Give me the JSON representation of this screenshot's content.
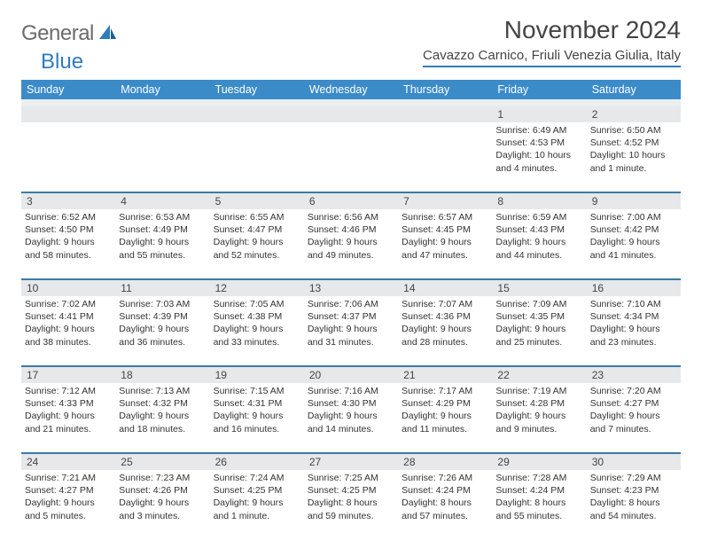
{
  "brand": {
    "general": "General",
    "blue": "Blue"
  },
  "title": "November 2024",
  "location": "Cavazzo Carnico, Friuli Venezia Giulia, Italy",
  "colors": {
    "header_bar": "#3b8bc9",
    "accent_line": "#2f7bc0",
    "daynum_bg": "#e6e8ea",
    "week_divider": "#3b7aa8",
    "text": "#333333",
    "logo_gray": "#6b6b6b"
  },
  "daynames": [
    "Sunday",
    "Monday",
    "Tuesday",
    "Wednesday",
    "Thursday",
    "Friday",
    "Saturday"
  ],
  "weeks": [
    [
      {
        "day": "",
        "lines": []
      },
      {
        "day": "",
        "lines": []
      },
      {
        "day": "",
        "lines": []
      },
      {
        "day": "",
        "lines": []
      },
      {
        "day": "",
        "lines": []
      },
      {
        "day": "1",
        "lines": [
          "Sunrise: 6:49 AM",
          "Sunset: 4:53 PM",
          "Daylight: 10 hours and 4 minutes."
        ]
      },
      {
        "day": "2",
        "lines": [
          "Sunrise: 6:50 AM",
          "Sunset: 4:52 PM",
          "Daylight: 10 hours and 1 minute."
        ]
      }
    ],
    [
      {
        "day": "3",
        "lines": [
          "Sunrise: 6:52 AM",
          "Sunset: 4:50 PM",
          "Daylight: 9 hours and 58 minutes."
        ]
      },
      {
        "day": "4",
        "lines": [
          "Sunrise: 6:53 AM",
          "Sunset: 4:49 PM",
          "Daylight: 9 hours and 55 minutes."
        ]
      },
      {
        "day": "5",
        "lines": [
          "Sunrise: 6:55 AM",
          "Sunset: 4:47 PM",
          "Daylight: 9 hours and 52 minutes."
        ]
      },
      {
        "day": "6",
        "lines": [
          "Sunrise: 6:56 AM",
          "Sunset: 4:46 PM",
          "Daylight: 9 hours and 49 minutes."
        ]
      },
      {
        "day": "7",
        "lines": [
          "Sunrise: 6:57 AM",
          "Sunset: 4:45 PM",
          "Daylight: 9 hours and 47 minutes."
        ]
      },
      {
        "day": "8",
        "lines": [
          "Sunrise: 6:59 AM",
          "Sunset: 4:43 PM",
          "Daylight: 9 hours and 44 minutes."
        ]
      },
      {
        "day": "9",
        "lines": [
          "Sunrise: 7:00 AM",
          "Sunset: 4:42 PM",
          "Daylight: 9 hours and 41 minutes."
        ]
      }
    ],
    [
      {
        "day": "10",
        "lines": [
          "Sunrise: 7:02 AM",
          "Sunset: 4:41 PM",
          "Daylight: 9 hours and 38 minutes."
        ]
      },
      {
        "day": "11",
        "lines": [
          "Sunrise: 7:03 AM",
          "Sunset: 4:39 PM",
          "Daylight: 9 hours and 36 minutes."
        ]
      },
      {
        "day": "12",
        "lines": [
          "Sunrise: 7:05 AM",
          "Sunset: 4:38 PM",
          "Daylight: 9 hours and 33 minutes."
        ]
      },
      {
        "day": "13",
        "lines": [
          "Sunrise: 7:06 AM",
          "Sunset: 4:37 PM",
          "Daylight: 9 hours and 31 minutes."
        ]
      },
      {
        "day": "14",
        "lines": [
          "Sunrise: 7:07 AM",
          "Sunset: 4:36 PM",
          "Daylight: 9 hours and 28 minutes."
        ]
      },
      {
        "day": "15",
        "lines": [
          "Sunrise: 7:09 AM",
          "Sunset: 4:35 PM",
          "Daylight: 9 hours and 25 minutes."
        ]
      },
      {
        "day": "16",
        "lines": [
          "Sunrise: 7:10 AM",
          "Sunset: 4:34 PM",
          "Daylight: 9 hours and 23 minutes."
        ]
      }
    ],
    [
      {
        "day": "17",
        "lines": [
          "Sunrise: 7:12 AM",
          "Sunset: 4:33 PM",
          "Daylight: 9 hours and 21 minutes."
        ]
      },
      {
        "day": "18",
        "lines": [
          "Sunrise: 7:13 AM",
          "Sunset: 4:32 PM",
          "Daylight: 9 hours and 18 minutes."
        ]
      },
      {
        "day": "19",
        "lines": [
          "Sunrise: 7:15 AM",
          "Sunset: 4:31 PM",
          "Daylight: 9 hours and 16 minutes."
        ]
      },
      {
        "day": "20",
        "lines": [
          "Sunrise: 7:16 AM",
          "Sunset: 4:30 PM",
          "Daylight: 9 hours and 14 minutes."
        ]
      },
      {
        "day": "21",
        "lines": [
          "Sunrise: 7:17 AM",
          "Sunset: 4:29 PM",
          "Daylight: 9 hours and 11 minutes."
        ]
      },
      {
        "day": "22",
        "lines": [
          "Sunrise: 7:19 AM",
          "Sunset: 4:28 PM",
          "Daylight: 9 hours and 9 minutes."
        ]
      },
      {
        "day": "23",
        "lines": [
          "Sunrise: 7:20 AM",
          "Sunset: 4:27 PM",
          "Daylight: 9 hours and 7 minutes."
        ]
      }
    ],
    [
      {
        "day": "24",
        "lines": [
          "Sunrise: 7:21 AM",
          "Sunset: 4:27 PM",
          "Daylight: 9 hours and 5 minutes."
        ]
      },
      {
        "day": "25",
        "lines": [
          "Sunrise: 7:23 AM",
          "Sunset: 4:26 PM",
          "Daylight: 9 hours and 3 minutes."
        ]
      },
      {
        "day": "26",
        "lines": [
          "Sunrise: 7:24 AM",
          "Sunset: 4:25 PM",
          "Daylight: 9 hours and 1 minute."
        ]
      },
      {
        "day": "27",
        "lines": [
          "Sunrise: 7:25 AM",
          "Sunset: 4:25 PM",
          "Daylight: 8 hours and 59 minutes."
        ]
      },
      {
        "day": "28",
        "lines": [
          "Sunrise: 7:26 AM",
          "Sunset: 4:24 PM",
          "Daylight: 8 hours and 57 minutes."
        ]
      },
      {
        "day": "29",
        "lines": [
          "Sunrise: 7:28 AM",
          "Sunset: 4:24 PM",
          "Daylight: 8 hours and 55 minutes."
        ]
      },
      {
        "day": "30",
        "lines": [
          "Sunrise: 7:29 AM",
          "Sunset: 4:23 PM",
          "Daylight: 8 hours and 54 minutes."
        ]
      }
    ]
  ]
}
